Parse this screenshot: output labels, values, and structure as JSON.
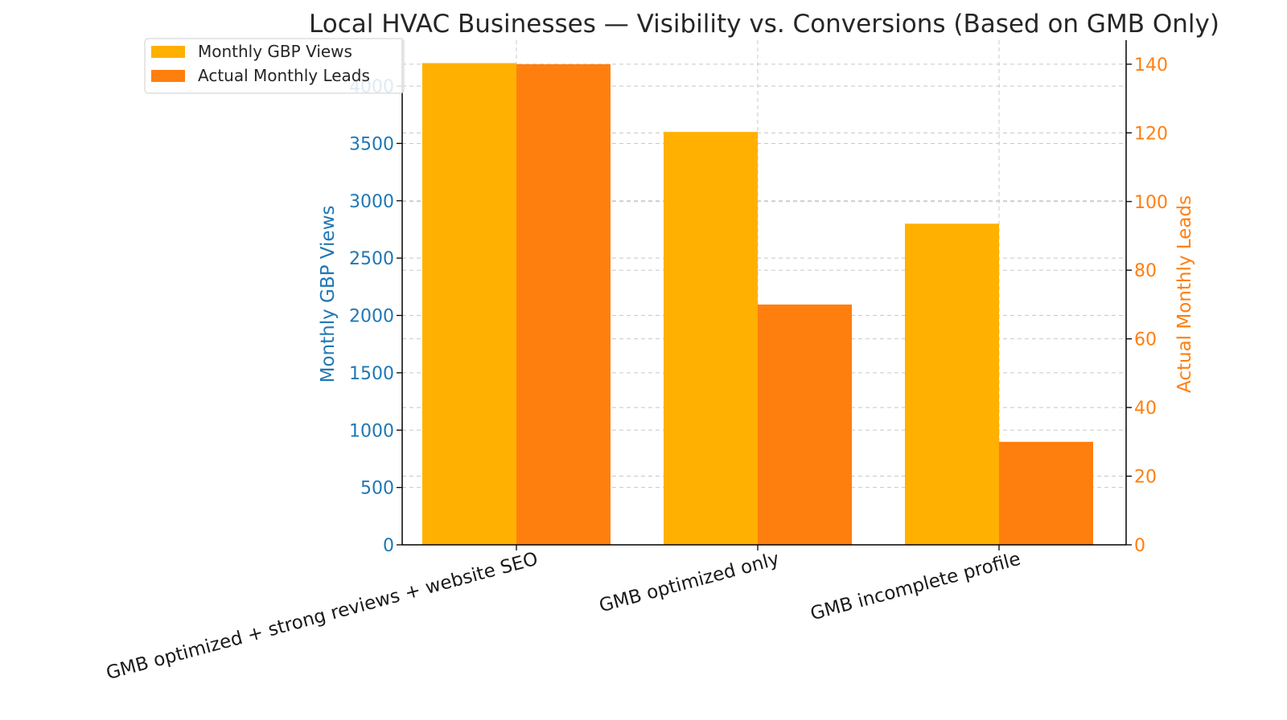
{
  "chart_data": {
    "type": "bar",
    "title": "Local HVAC Businesses — Visibility vs. Conversions (Based on GMB Only)",
    "categories": [
      "GMB optimized + strong reviews + website SEO",
      "GMB optimized only",
      "GMB incomplete profile"
    ],
    "series": [
      {
        "name": "Monthly GBP Views",
        "values": [
          4200,
          3600,
          2800
        ],
        "axis": "left",
        "color": "#FFB000"
      },
      {
        "name": "Actual Monthly Leads",
        "values": [
          140,
          70,
          30
        ],
        "axis": "right",
        "color": "#FF7F0E"
      }
    ],
    "ylabel_left": "Monthly GBP Views",
    "ylabel_right": "Actual Monthly Leads",
    "ylim_left": [
      0,
      4400
    ],
    "ylim_right": [
      0,
      147
    ],
    "yticks_left": [
      0,
      500,
      1000,
      1500,
      2000,
      2500,
      3000,
      3500,
      4000
    ],
    "yticks_right": [
      0,
      20,
      40,
      60,
      80,
      100,
      120,
      140
    ],
    "left_axis_color": "#1f77b4",
    "right_axis_color": "#FF7F0E",
    "grid": true,
    "legend_position": "top-left"
  }
}
